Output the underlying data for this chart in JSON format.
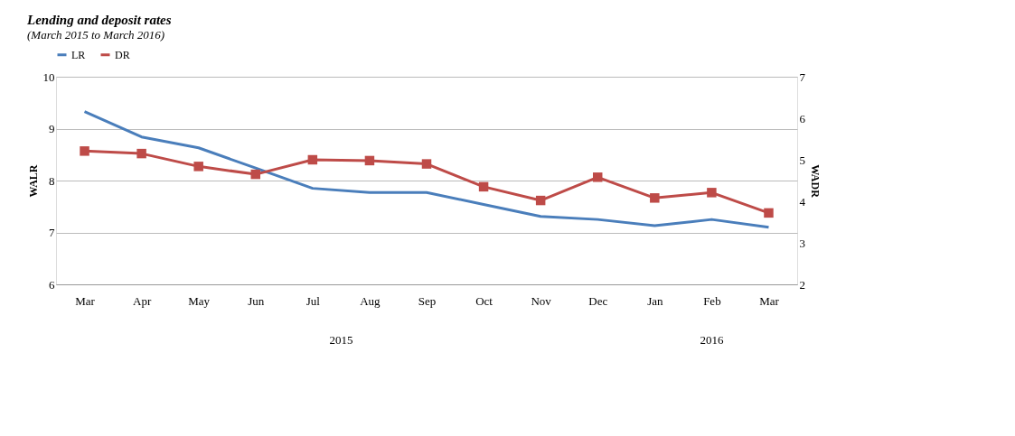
{
  "chart_data": {
    "type": "line",
    "title": "Lending and deposit rates",
    "subtitle": "(March 2015 to March 2016)",
    "categories": [
      "Mar",
      "Apr",
      "May",
      "Jun",
      "Jul",
      "Aug",
      "Sep",
      "Oct",
      "Nov",
      "Dec",
      "Jan",
      "Feb",
      "Mar"
    ],
    "series": [
      {
        "name": "LR",
        "color": "#4a7ebb",
        "marker": "none",
        "values": [
          9.33,
          8.84,
          8.63,
          8.24,
          7.85,
          7.77,
          7.77,
          7.54,
          7.31,
          7.25,
          7.13,
          7.25,
          7.1
        ]
      },
      {
        "name": "DR",
        "color": "#be4b48",
        "marker": "square",
        "axis": "y2",
        "values": [
          5.21,
          5.15,
          4.84,
          4.65,
          5.0,
          4.98,
          4.9,
          4.35,
          4.02,
          4.58,
          4.08,
          4.21,
          3.72
        ]
      }
    ],
    "ylabel": "WALR",
    "y2label": "WADR",
    "ylim": [
      6,
      10
    ],
    "yticks": [
      6,
      7,
      8,
      9,
      10
    ],
    "y2lim": [
      2,
      7
    ],
    "y2ticks": [
      2,
      3,
      4,
      5,
      6,
      7
    ],
    "annotations": [
      "2015",
      "2016"
    ],
    "grid": "y",
    "legend": "top"
  }
}
